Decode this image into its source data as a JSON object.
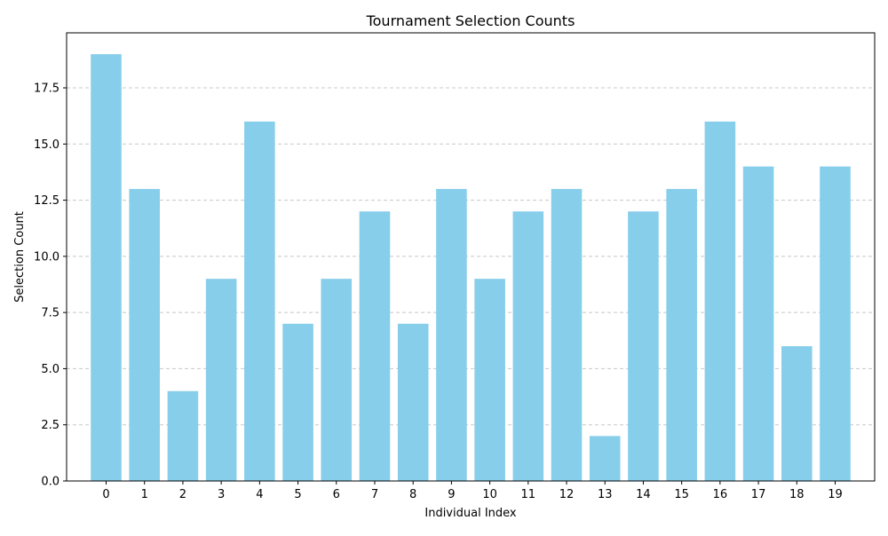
{
  "chart_data": {
    "type": "bar",
    "title": "Tournament Selection Counts",
    "xlabel": "Individual Index",
    "ylabel": "Selection Count",
    "categories": [
      "0",
      "1",
      "2",
      "3",
      "4",
      "5",
      "6",
      "7",
      "8",
      "9",
      "10",
      "11",
      "12",
      "13",
      "14",
      "15",
      "16",
      "17",
      "18",
      "19"
    ],
    "values": [
      19,
      13,
      4,
      9,
      16,
      7,
      9,
      12,
      7,
      13,
      9,
      12,
      13,
      2,
      12,
      13,
      16,
      14,
      6,
      14
    ],
    "ylim": [
      0,
      19.95
    ],
    "yticks": [
      "0.0",
      "2.5",
      "5.0",
      "7.5",
      "10.0",
      "12.5",
      "15.0",
      "17.5"
    ],
    "grid": "y-dashed",
    "colors": {
      "bar": "#87ceeb",
      "grid": "#c8c8c8",
      "axis": "#000000"
    }
  }
}
